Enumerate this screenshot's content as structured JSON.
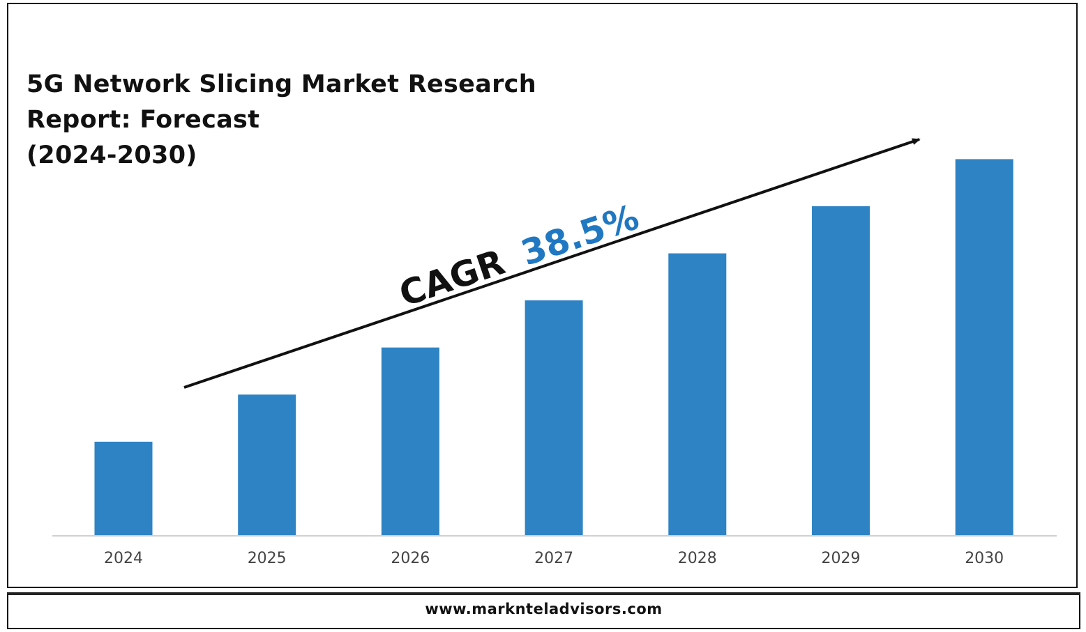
{
  "title": "5G Network Slicing Market Research\nReport: Forecast\n(2024-2030)",
  "footer": {
    "website": "www.marknteladvisors.com"
  },
  "annotation": {
    "prefix": "CAGR",
    "value": "38.5%"
  },
  "colors": {
    "bar": "#2E83C4",
    "annotation_value": "#1F78C1",
    "text": "#111111",
    "axis": "#d0d0d0"
  },
  "chart_data": {
    "type": "bar",
    "categories": [
      "2024",
      "2025",
      "2026",
      "2027",
      "2028",
      "2029",
      "2030"
    ],
    "values": [
      1,
      1.5,
      2,
      2.5,
      3,
      3.5,
      4
    ],
    "ylim": [
      0,
      4.24
    ],
    "xlabel": "",
    "ylabel": "",
    "grid": false,
    "legend": "none",
    "trend_arrow": "rising left-to-right above bars"
  }
}
